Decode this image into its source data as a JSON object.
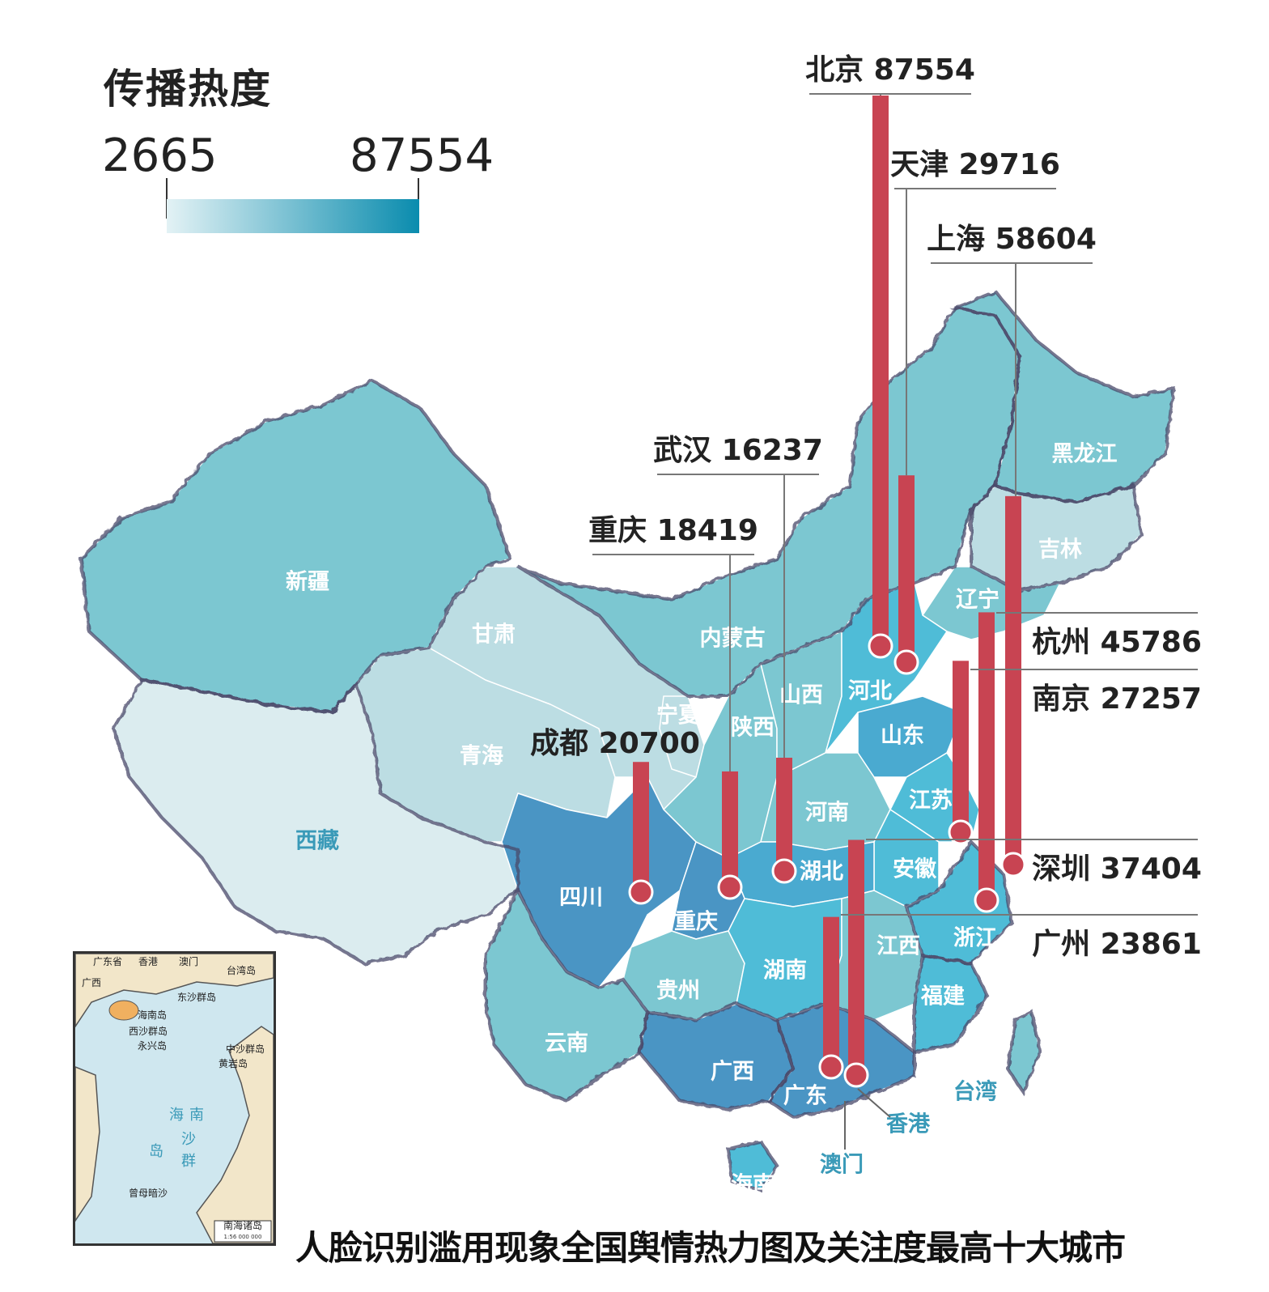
{
  "legend": {
    "title": "传播热度",
    "min": "2665",
    "max": "87554",
    "color_low": "#e3f2f5",
    "color_high": "#0a8cae"
  },
  "caption": "人脸识别滥用现象全国舆情热力图及关注度最高十大城市",
  "provinces": {
    "xinjiang": "新疆",
    "xizang": "西藏",
    "qinghai": "青海",
    "gansu": "甘肃",
    "neimenggu": "内蒙古",
    "ningxia": "宁夏",
    "shaanxi": "陕西",
    "shanxi": "山西",
    "hebei": "河北",
    "shandong": "山东",
    "henan": "河南",
    "jiangsu": "江苏",
    "anhui": "安徽",
    "hubei": "湖北",
    "sichuan": "四川",
    "chongqing": "重庆",
    "guizhou": "贵州",
    "yunnan": "云南",
    "hunan": "湖南",
    "jiangxi": "江西",
    "zhejiang": "浙江",
    "fujian": "福建",
    "guangxi": "广西",
    "guangdong": "广东",
    "hainan": "海南",
    "xianggang": "香港",
    "aomen": "澳门",
    "taiwan": "台湾",
    "liaoning": "辽宁",
    "jilin": "吉林",
    "heilongjiang": "黑龙江"
  },
  "cities": [
    {
      "name": "北京",
      "value": 87554
    },
    {
      "name": "天津",
      "value": 29716
    },
    {
      "name": "上海",
      "value": 58604
    },
    {
      "name": "武汉",
      "value": 16237
    },
    {
      "name": "重庆",
      "value": 18419
    },
    {
      "name": "成都",
      "value": 20700
    },
    {
      "name": "杭州",
      "value": 45786
    },
    {
      "name": "南京",
      "value": 27257
    },
    {
      "name": "深圳",
      "value": 37404
    },
    {
      "name": "广州",
      "value": 23861
    }
  ],
  "inset": {
    "labels": [
      "台湾岛",
      "东沙群岛",
      "海南岛",
      "西沙群岛",
      "中沙群岛",
      "永兴岛",
      "黄岩岛",
      "海",
      "南",
      "沙",
      "群",
      "岛",
      "曾母暗沙",
      "南海诸岛",
      "广东省",
      "香港",
      "澳门",
      "广西"
    ],
    "scale": "1:56 000 000"
  },
  "colors": {
    "bar": "#c84452",
    "border": "#4a4a6a"
  }
}
